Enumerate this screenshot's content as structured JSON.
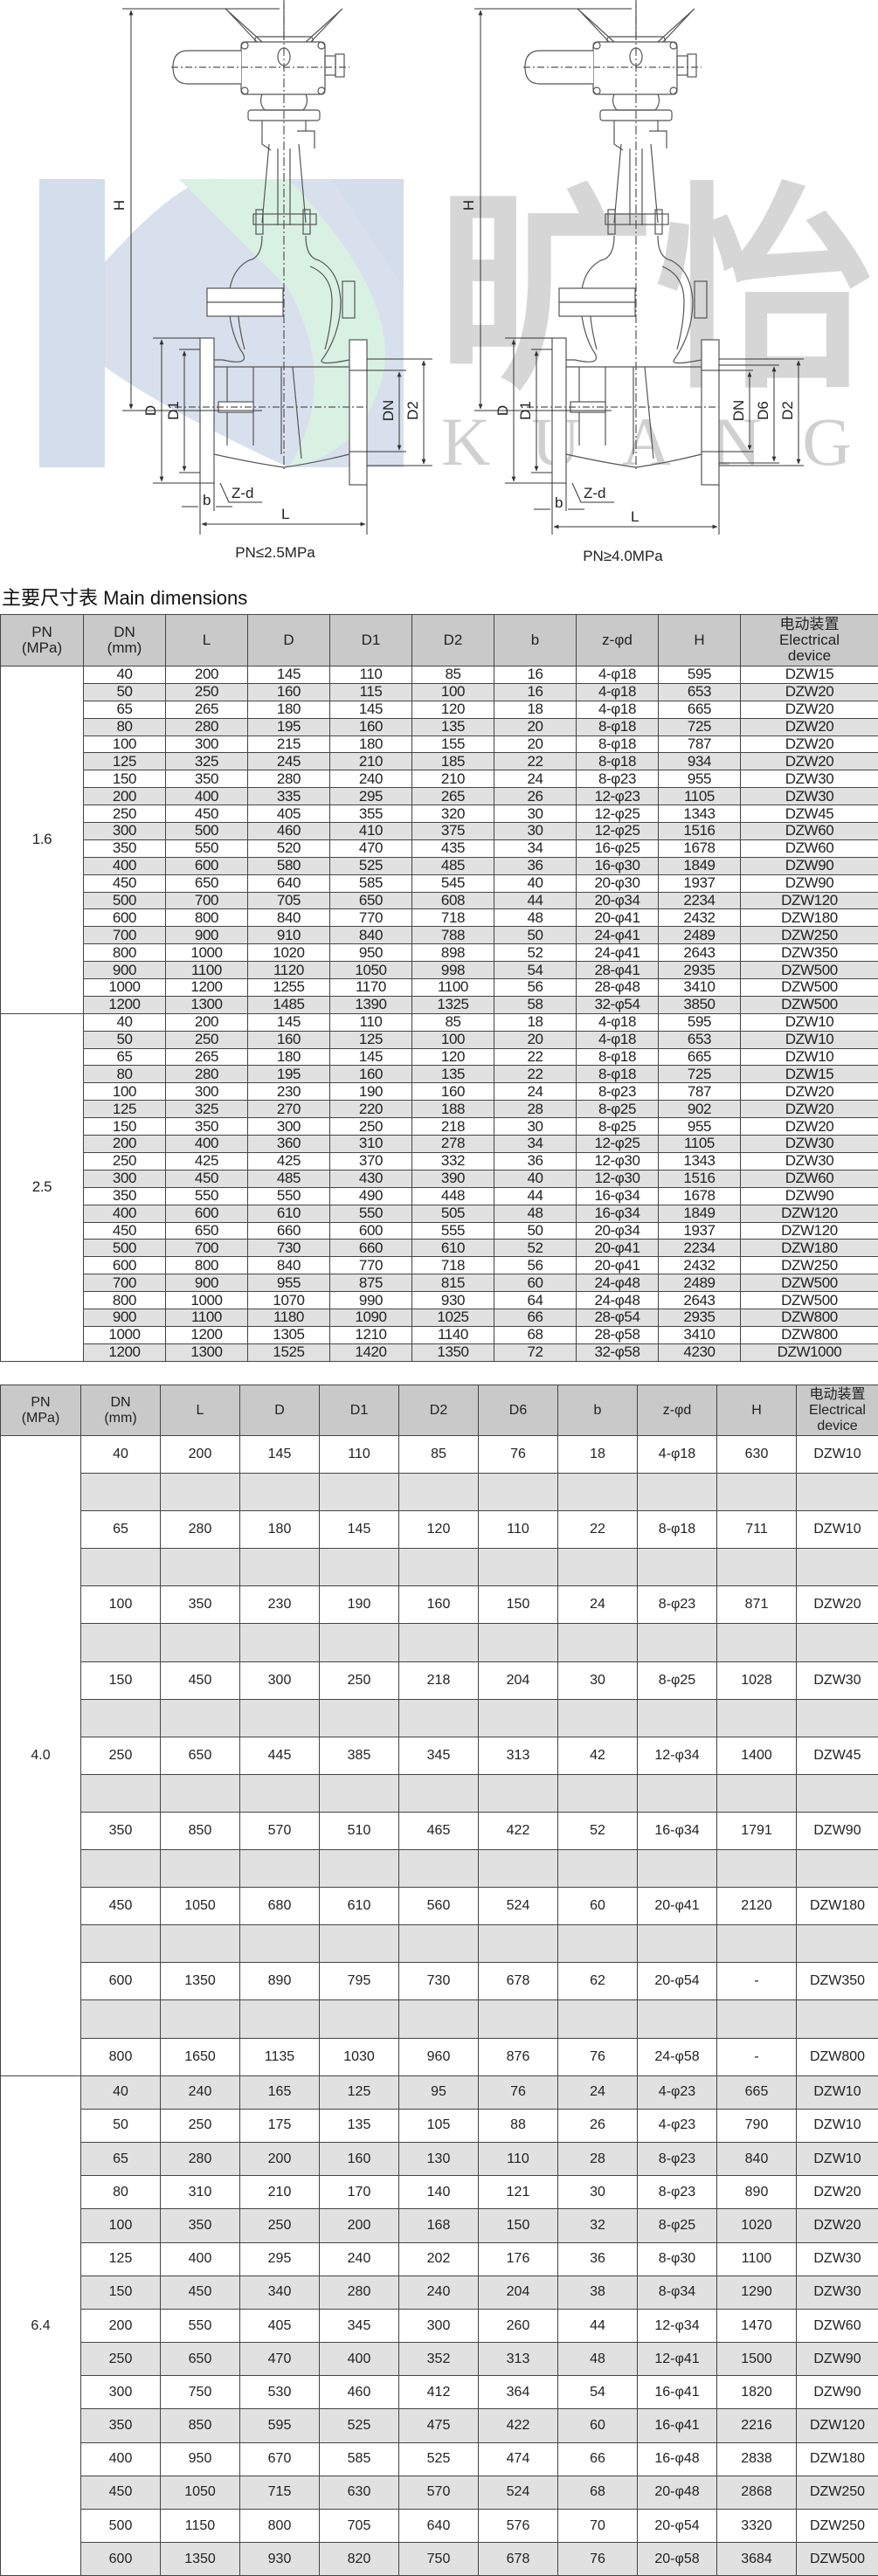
{
  "drawings": {
    "left_caption": "PN≤2.5MPa",
    "right_caption": "PN≥4.0MPa",
    "labels": {
      "H": "H",
      "D": "D",
      "D1": "D1",
      "DN": "DN",
      "D2": "D2",
      "D6": "D6",
      "b": "b",
      "Zd": "Z-d",
      "L": "L"
    }
  },
  "watermark": {
    "logo_cn": "旷怡",
    "logo_en": "KUANGYI",
    "colors": {
      "blue": "#d4ddeb",
      "green": "#d8f1e2",
      "grey": "#d6d6d6"
    }
  },
  "title": "主要尺寸表 Main dimensions",
  "colors": {
    "header_bg": "#c9c9c9",
    "stripe": "#e1e1e1",
    "border": "#444444"
  },
  "table1": {
    "headers": [
      [
        "PN",
        "(MPa)"
      ],
      [
        "DN",
        "(mm)"
      ],
      [
        "L"
      ],
      [
        "D"
      ],
      [
        "D1"
      ],
      [
        "D2"
      ],
      [
        "b"
      ],
      [
        "z-φd"
      ],
      [
        "H"
      ],
      [
        "电动装置",
        "Electrical",
        "device"
      ]
    ],
    "groups": [
      {
        "pn": "1.6",
        "rows": [
          [
            "40",
            "200",
            "145",
            "110",
            "85",
            "16",
            "4-φ18",
            "595",
            "DZW15"
          ],
          [
            "50",
            "250",
            "160",
            "115",
            "100",
            "16",
            "4-φ18",
            "653",
            "DZW20"
          ],
          [
            "65",
            "265",
            "180",
            "145",
            "120",
            "18",
            "4-φ18",
            "665",
            "DZW20"
          ],
          [
            "80",
            "280",
            "195",
            "160",
            "135",
            "20",
            "8-φ18",
            "725",
            "DZW20"
          ],
          [
            "100",
            "300",
            "215",
            "180",
            "155",
            "20",
            "8-φ18",
            "787",
            "DZW20"
          ],
          [
            "125",
            "325",
            "245",
            "210",
            "185",
            "22",
            "8-φ18",
            "934",
            "DZW20"
          ],
          [
            "150",
            "350",
            "280",
            "240",
            "210",
            "24",
            "8-φ23",
            "955",
            "DZW30"
          ],
          [
            "200",
            "400",
            "335",
            "295",
            "265",
            "26",
            "12-φ23",
            "1105",
            "DZW30"
          ],
          [
            "250",
            "450",
            "405",
            "355",
            "320",
            "30",
            "12-φ25",
            "1343",
            "DZW45"
          ],
          [
            "300",
            "500",
            "460",
            "410",
            "375",
            "30",
            "12-φ25",
            "1516",
            "DZW60"
          ],
          [
            "350",
            "550",
            "520",
            "470",
            "435",
            "34",
            "16-φ25",
            "1678",
            "DZW60"
          ],
          [
            "400",
            "600",
            "580",
            "525",
            "485",
            "36",
            "16-φ30",
            "1849",
            "DZW90"
          ],
          [
            "450",
            "650",
            "640",
            "585",
            "545",
            "40",
            "20-φ30",
            "1937",
            "DZW90"
          ],
          [
            "500",
            "700",
            "705",
            "650",
            "608",
            "44",
            "20-φ34",
            "2234",
            "DZW120"
          ],
          [
            "600",
            "800",
            "840",
            "770",
            "718",
            "48",
            "20-φ41",
            "2432",
            "DZW180"
          ],
          [
            "700",
            "900",
            "910",
            "840",
            "788",
            "50",
            "24-φ41",
            "2489",
            "DZW250"
          ],
          [
            "800",
            "1000",
            "1020",
            "950",
            "898",
            "52",
            "24-φ41",
            "2643",
            "DZW350"
          ],
          [
            "900",
            "1100",
            "1120",
            "1050",
            "998",
            "54",
            "28-φ41",
            "2935",
            "DZW500"
          ],
          [
            "1000",
            "1200",
            "1255",
            "1170",
            "1100",
            "56",
            "28-φ48",
            "3410",
            "DZW500"
          ],
          [
            "1200",
            "1300",
            "1485",
            "1390",
            "1325",
            "58",
            "32-φ54",
            "3850",
            "DZW500"
          ]
        ]
      },
      {
        "pn": "2.5",
        "rows": [
          [
            "40",
            "200",
            "145",
            "110",
            "85",
            "18",
            "4-φ18",
            "595",
            "DZW10"
          ],
          [
            "50",
            "250",
            "160",
            "125",
            "100",
            "20",
            "4-φ18",
            "653",
            "DZW10"
          ],
          [
            "65",
            "265",
            "180",
            "145",
            "120",
            "22",
            "8-φ18",
            "665",
            "DZW10"
          ],
          [
            "80",
            "280",
            "195",
            "160",
            "135",
            "22",
            "8-φ18",
            "725",
            "DZW15"
          ],
          [
            "100",
            "300",
            "230",
            "190",
            "160",
            "24",
            "8-φ23",
            "787",
            "DZW20"
          ],
          [
            "125",
            "325",
            "270",
            "220",
            "188",
            "28",
            "8-φ25",
            "902",
            "DZW20"
          ],
          [
            "150",
            "350",
            "300",
            "250",
            "218",
            "30",
            "8-φ25",
            "955",
            "DZW20"
          ],
          [
            "200",
            "400",
            "360",
            "310",
            "278",
            "34",
            "12-φ25",
            "1105",
            "DZW30"
          ],
          [
            "250",
            "425",
            "425",
            "370",
            "332",
            "36",
            "12-φ30",
            "1343",
            "DZW30"
          ],
          [
            "300",
            "450",
            "485",
            "430",
            "390",
            "40",
            "12-φ30",
            "1516",
            "DZW60"
          ],
          [
            "350",
            "550",
            "550",
            "490",
            "448",
            "44",
            "16-φ34",
            "1678",
            "DZW90"
          ],
          [
            "400",
            "600",
            "610",
            "550",
            "505",
            "48",
            "16-φ34",
            "1849",
            "DZW120"
          ],
          [
            "450",
            "650",
            "660",
            "600",
            "555",
            "50",
            "20-φ34",
            "1937",
            "DZW120"
          ],
          [
            "500",
            "700",
            "730",
            "660",
            "610",
            "52",
            "20-φ41",
            "2234",
            "DZW180"
          ],
          [
            "600",
            "800",
            "840",
            "770",
            "718",
            "56",
            "20-φ41",
            "2432",
            "DZW250"
          ],
          [
            "700",
            "900",
            "955",
            "875",
            "815",
            "60",
            "24-φ48",
            "2489",
            "DZW500"
          ],
          [
            "800",
            "1000",
            "1070",
            "990",
            "930",
            "64",
            "24-φ48",
            "2643",
            "DZW500"
          ],
          [
            "900",
            "1100",
            "1180",
            "1090",
            "1025",
            "66",
            "28-φ54",
            "2935",
            "DZW800"
          ],
          [
            "1000",
            "1200",
            "1305",
            "1210",
            "1140",
            "68",
            "28-φ58",
            "3410",
            "DZW800"
          ],
          [
            "1200",
            "1300",
            "1525",
            "1420",
            "1350",
            "72",
            "32-φ58",
            "4230",
            "DZW1000"
          ]
        ]
      }
    ]
  },
  "table2": {
    "headers": [
      [
        "PN",
        "(MPa)"
      ],
      [
        "DN",
        "(mm)"
      ],
      [
        "L"
      ],
      [
        "D"
      ],
      [
        "D1"
      ],
      [
        "D2"
      ],
      [
        "D6"
      ],
      [
        "b"
      ],
      [
        "z-φd"
      ],
      [
        "H"
      ],
      [
        "电动装置",
        "Electrical",
        "device"
      ]
    ],
    "groups": [
      {
        "pn": "4.0",
        "rows": [
          [
            "40",
            "200",
            "145",
            "110",
            "85",
            "76",
            "18",
            "4-φ18",
            "630",
            "DZW10"
          ],
          [],
          [
            "65",
            "280",
            "180",
            "145",
            "120",
            "110",
            "22",
            "8-φ18",
            "711",
            "DZW10"
          ],
          [],
          [
            "100",
            "350",
            "230",
            "190",
            "160",
            "150",
            "24",
            "8-φ23",
            "871",
            "DZW20"
          ],
          [],
          [
            "150",
            "450",
            "300",
            "250",
            "218",
            "204",
            "30",
            "8-φ25",
            "1028",
            "DZW30"
          ],
          [],
          [
            "250",
            "650",
            "445",
            "385",
            "345",
            "313",
            "42",
            "12-φ34",
            "1400",
            "DZW45"
          ],
          [],
          [
            "350",
            "850",
            "570",
            "510",
            "465",
            "422",
            "52",
            "16-φ34",
            "1791",
            "DZW90"
          ],
          [],
          [
            "450",
            "1050",
            "680",
            "610",
            "560",
            "524",
            "60",
            "20-φ41",
            "2120",
            "DZW180"
          ],
          [],
          [
            "600",
            "1350",
            "890",
            "795",
            "730",
            "678",
            "62",
            "20-φ54",
            "-",
            "DZW350"
          ],
          [],
          [
            "800",
            "1650",
            "1135",
            "1030",
            "960",
            "876",
            "76",
            "24-φ58",
            "-",
            "DZW800"
          ]
        ]
      },
      {
        "pn": "6.4",
        "rows": [
          [
            "40",
            "240",
            "165",
            "125",
            "95",
            "76",
            "24",
            "4-φ23",
            "665",
            "DZW10"
          ],
          [
            "50",
            "250",
            "175",
            "135",
            "105",
            "88",
            "26",
            "4-φ23",
            "790",
            "DZW10"
          ],
          [
            "65",
            "280",
            "200",
            "160",
            "130",
            "110",
            "28",
            "8-φ23",
            "840",
            "DZW10"
          ],
          [
            "80",
            "310",
            "210",
            "170",
            "140",
            "121",
            "30",
            "8-φ23",
            "890",
            "DZW20"
          ],
          [
            "100",
            "350",
            "250",
            "200",
            "168",
            "150",
            "32",
            "8-φ25",
            "1020",
            "DZW20"
          ],
          [
            "125",
            "400",
            "295",
            "240",
            "202",
            "176",
            "36",
            "8-φ30",
            "1100",
            "DZW30"
          ],
          [
            "150",
            "450",
            "340",
            "280",
            "240",
            "204",
            "38",
            "8-φ34",
            "1290",
            "DZW30"
          ],
          [
            "200",
            "550",
            "405",
            "345",
            "300",
            "260",
            "44",
            "12-φ34",
            "1470",
            "DZW60"
          ],
          [
            "250",
            "650",
            "470",
            "400",
            "352",
            "313",
            "48",
            "12-φ41",
            "1500",
            "DZW90"
          ],
          [
            "300",
            "750",
            "530",
            "460",
            "412",
            "364",
            "54",
            "16-φ41",
            "1820",
            "DZW90"
          ],
          [
            "350",
            "850",
            "595",
            "525",
            "475",
            "422",
            "60",
            "16-φ41",
            "2216",
            "DZW120"
          ],
          [
            "400",
            "950",
            "670",
            "585",
            "525",
            "474",
            "66",
            "16-φ48",
            "2838",
            "DZW180"
          ],
          [
            "450",
            "1050",
            "715",
            "630",
            "570",
            "524",
            "68",
            "20-φ48",
            "2868",
            "DZW250"
          ],
          [
            "500",
            "1150",
            "800",
            "705",
            "640",
            "576",
            "70",
            "20-φ54",
            "3320",
            "DZW250"
          ],
          [
            "600",
            "1350",
            "930",
            "820",
            "750",
            "678",
            "76",
            "20-φ58",
            "3684",
            "DZW500"
          ]
        ]
      }
    ]
  }
}
